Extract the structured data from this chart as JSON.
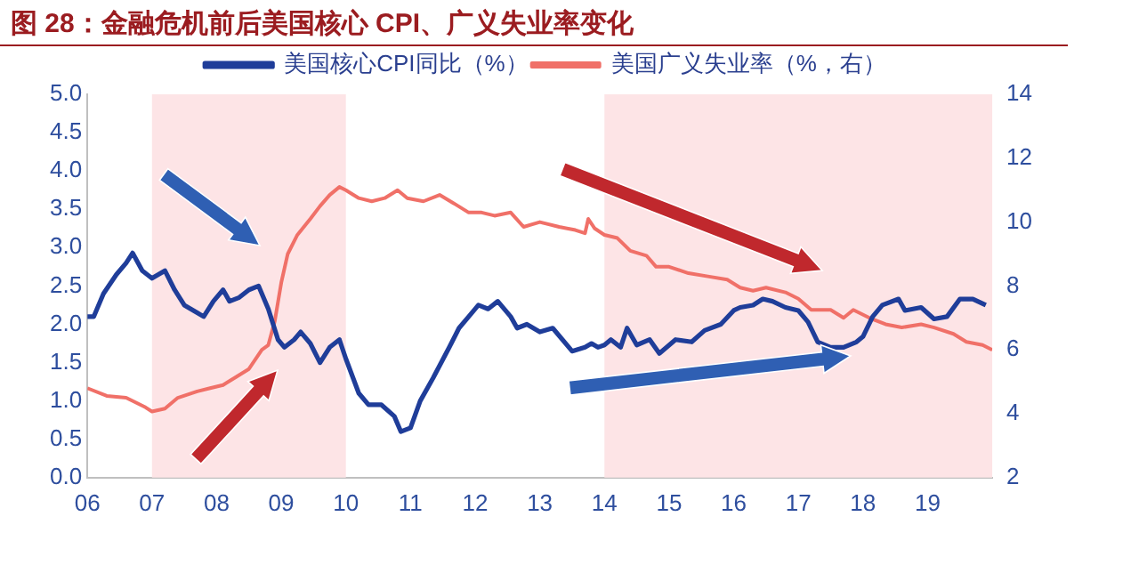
{
  "chart_data": {
    "type": "line",
    "title": "图 28：金融危机前后美国核心 CPI、广义失业率变化",
    "xlim": [
      2006,
      2020
    ],
    "xticks": [
      {
        "value": 2006,
        "label": "06"
      },
      {
        "value": 2007,
        "label": "07"
      },
      {
        "value": 2008,
        "label": "08"
      },
      {
        "value": 2009,
        "label": "09"
      },
      {
        "value": 2010,
        "label": "10"
      },
      {
        "value": 2011,
        "label": "11"
      },
      {
        "value": 2012,
        "label": "12"
      },
      {
        "value": 2013,
        "label": "13"
      },
      {
        "value": 2014,
        "label": "14"
      },
      {
        "value": 2015,
        "label": "15"
      },
      {
        "value": 2016,
        "label": "16"
      },
      {
        "value": 2017,
        "label": "17"
      },
      {
        "value": 2018,
        "label": "18"
      },
      {
        "value": 2019,
        "label": "19"
      }
    ],
    "ylim": [
      0,
      5
    ],
    "yticks": [
      {
        "value": 0,
        "label": "0.0"
      },
      {
        "value": 0.5,
        "label": "0.5"
      },
      {
        "value": 1,
        "label": "1.0"
      },
      {
        "value": 1.5,
        "label": "1.5"
      },
      {
        "value": 2,
        "label": "2.0"
      },
      {
        "value": 2.5,
        "label": "2.5"
      },
      {
        "value": 3,
        "label": "3.0"
      },
      {
        "value": 3.5,
        "label": "3.5"
      },
      {
        "value": 4,
        "label": "4.0"
      },
      {
        "value": 4.5,
        "label": "4.5"
      },
      {
        "value": 5,
        "label": "5.0"
      }
    ],
    "y2lim": [
      2,
      14
    ],
    "y2ticks": [
      2,
      4,
      6,
      8,
      10,
      12,
      14
    ],
    "legend": "top",
    "grid": false,
    "bands": [
      {
        "axis": "x",
        "from": 2007,
        "to": 2010,
        "color": "#fde4e6"
      },
      {
        "axis": "x",
        "from": 2014,
        "to": 2020,
        "color": "#fde4e6"
      }
    ],
    "series": [
      {
        "name": "美国核心CPI同比（%）",
        "color": "#1f3d99",
        "x": [
          2006.0,
          2006.1,
          2006.25,
          2006.45,
          2006.6,
          2006.7,
          2006.85,
          2007.0,
          2007.1,
          2007.2,
          2007.35,
          2007.5,
          2007.7,
          2007.8,
          2007.95,
          2008.1,
          2008.2,
          2008.35,
          2008.5,
          2008.65,
          2008.8,
          2008.95,
          2009.05,
          2009.2,
          2009.3,
          2009.45,
          2009.6,
          2009.75,
          2009.9,
          2010.0,
          2010.2,
          2010.35,
          2010.55,
          2010.75,
          2010.85,
          2011.0,
          2011.15,
          2011.35,
          2011.6,
          2011.75,
          2011.9,
          2012.05,
          2012.2,
          2012.35,
          2012.55,
          2012.65,
          2012.8,
          2013.0,
          2013.2,
          2013.5,
          2013.7,
          2013.8,
          2013.9,
          2014.0,
          2014.1,
          2014.25,
          2014.35,
          2014.5,
          2014.7,
          2014.85,
          2015.1,
          2015.35,
          2015.55,
          2015.8,
          2016.0,
          2016.1,
          2016.3,
          2016.45,
          2016.6,
          2016.8,
          2017.0,
          2017.15,
          2017.3,
          2017.5,
          2017.7,
          2017.9,
          2018.0,
          2018.15,
          2018.3,
          2018.55,
          2018.65,
          2018.9,
          2019.1,
          2019.3,
          2019.5,
          2019.7,
          2019.9
        ],
        "values": [
          2.1,
          2.1,
          2.4,
          2.65,
          2.8,
          2.93,
          2.7,
          2.6,
          2.65,
          2.7,
          2.45,
          2.25,
          2.15,
          2.1,
          2.3,
          2.45,
          2.3,
          2.35,
          2.45,
          2.5,
          2.2,
          1.8,
          1.7,
          1.8,
          1.9,
          1.75,
          1.5,
          1.7,
          1.8,
          1.55,
          1.1,
          0.95,
          0.95,
          0.8,
          0.6,
          0.65,
          1.0,
          1.3,
          1.7,
          1.95,
          2.1,
          2.25,
          2.2,
          2.3,
          2.1,
          1.95,
          2.0,
          1.9,
          1.95,
          1.65,
          1.7,
          1.75,
          1.7,
          1.73,
          1.8,
          1.7,
          1.95,
          1.73,
          1.8,
          1.62,
          1.8,
          1.77,
          1.92,
          2.0,
          2.18,
          2.22,
          2.25,
          2.33,
          2.3,
          2.22,
          2.18,
          2.03,
          1.77,
          1.7,
          1.7,
          1.77,
          1.84,
          2.1,
          2.25,
          2.33,
          2.18,
          2.22,
          2.07,
          2.1,
          2.33,
          2.33,
          2.25
        ]
      },
      {
        "name": "美国广义失业率（%，右）",
        "color": "#f07068",
        "axis": "y2",
        "x": [
          2006.0,
          2006.3,
          2006.6,
          2006.9,
          2007.0,
          2007.2,
          2007.4,
          2007.7,
          2007.9,
          2008.1,
          2008.3,
          2008.5,
          2008.7,
          2008.8,
          2008.9,
          2009.0,
          2009.1,
          2009.25,
          2009.45,
          2009.6,
          2009.75,
          2009.9,
          2010.0,
          2010.2,
          2010.4,
          2010.6,
          2010.8,
          2010.95,
          2011.2,
          2011.45,
          2011.7,
          2011.9,
          2012.1,
          2012.3,
          2012.55,
          2012.75,
          2013.0,
          2013.3,
          2013.55,
          2013.7,
          2013.75,
          2013.85,
          2014.0,
          2014.2,
          2014.4,
          2014.65,
          2014.8,
          2015.0,
          2015.3,
          2015.6,
          2015.9,
          2016.1,
          2016.3,
          2016.5,
          2016.8,
          2017.0,
          2017.2,
          2017.5,
          2017.7,
          2017.85,
          2018.1,
          2018.35,
          2018.6,
          2018.9,
          2019.1,
          2019.4,
          2019.6,
          2019.85,
          2020.0
        ],
        "values": [
          4.8,
          4.56,
          4.5,
          4.2,
          4.07,
          4.16,
          4.5,
          4.7,
          4.8,
          4.9,
          5.15,
          5.4,
          6.0,
          6.15,
          6.9,
          8.1,
          9.0,
          9.6,
          10.1,
          10.5,
          10.85,
          11.1,
          11.0,
          10.75,
          10.65,
          10.75,
          11.0,
          10.75,
          10.65,
          10.85,
          10.55,
          10.3,
          10.3,
          10.2,
          10.3,
          9.85,
          10.0,
          9.85,
          9.75,
          9.65,
          10.1,
          9.8,
          9.6,
          9.5,
          9.1,
          8.95,
          8.6,
          8.6,
          8.4,
          8.3,
          8.2,
          7.95,
          7.85,
          7.95,
          7.8,
          7.6,
          7.25,
          7.25,
          7.0,
          7.25,
          7.0,
          6.8,
          6.7,
          6.8,
          6.7,
          6.5,
          6.25,
          6.15,
          6.0
        ]
      }
    ]
  }
}
